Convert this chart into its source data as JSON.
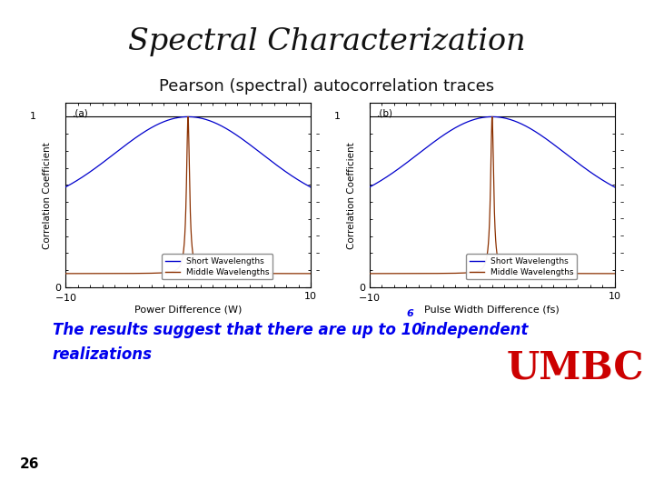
{
  "title": "Spectral Characterization",
  "subtitle": "Pearson (spectral) autocorrelation traces",
  "plot_a_label": ".(a)",
  "plot_b_label": ".(b)",
  "xlabel_a": "Power Difference (W)",
  "xlabel_b": "Pulse Width Difference (fs)",
  "ylabel": "Correlation Coefficient",
  "x_range": [
    -10,
    10
  ],
  "blue_color": "#0000CC",
  "red_color": "#8B3000",
  "legend_entries": [
    "Short Wavelengths",
    "Middle Wavelengths"
  ],
  "bottom_text_color": "#0000EE",
  "page_number": "26",
  "title_color": "#111111",
  "umbc_color": "#CC0000",
  "header_bar_color": "#B22222",
  "footer_bar_color": "#B22222",
  "background_color": "#ffffff",
  "title_fontsize": 24,
  "subtitle_fontsize": 13
}
